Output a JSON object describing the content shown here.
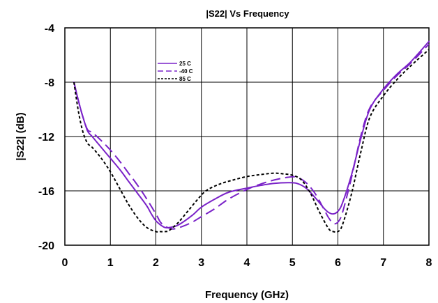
{
  "chart_data": {
    "type": "line",
    "title": "|S22| Vs Frequency",
    "xlabel": "Frequency (GHz)",
    "ylabel": "|S22|  (dB)",
    "xlim": [
      0,
      8
    ],
    "ylim": [
      -20,
      -4
    ],
    "xticks": [
      "0",
      "1",
      "2",
      "3",
      "4",
      "5",
      "6",
      "7",
      "8"
    ],
    "yticks": [
      "-4",
      "-8",
      "-12",
      "-16",
      "-20"
    ],
    "grid": true,
    "legend_position": "top-left inside plot",
    "series": [
      {
        "name": "25 C",
        "color": "#7a22c8",
        "style": "solid",
        "x": [
          0.2,
          0.3,
          0.4,
          0.5,
          0.6,
          0.8,
          1.0,
          1.2,
          1.4,
          1.6,
          1.8,
          1.9,
          2.0,
          2.1,
          2.2,
          2.3,
          2.5,
          2.8,
          3.0,
          3.3,
          3.6,
          4.0,
          4.3,
          4.6,
          4.9,
          5.1,
          5.3,
          5.5,
          5.7,
          5.8,
          5.9,
          6.0,
          6.1,
          6.3,
          6.5,
          6.7,
          7.0,
          7.3,
          7.6,
          8.0
        ],
        "y": [
          -8.0,
          -9.4,
          -10.6,
          -11.6,
          -12.0,
          -12.8,
          -13.6,
          -14.4,
          -15.3,
          -16.2,
          -17.1,
          -17.7,
          -18.2,
          -18.5,
          -18.7,
          -18.7,
          -18.5,
          -17.8,
          -17.2,
          -16.6,
          -16.1,
          -15.8,
          -15.6,
          -15.45,
          -15.4,
          -15.45,
          -15.8,
          -16.5,
          -17.3,
          -17.6,
          -17.7,
          -17.5,
          -16.9,
          -14.8,
          -12.2,
          -10.0,
          -8.5,
          -7.4,
          -6.5,
          -5.0
        ]
      },
      {
        "name": "-40 C",
        "color": "#7a22c8",
        "style": "dashed",
        "x": [
          0.2,
          0.3,
          0.4,
          0.5,
          0.6,
          0.8,
          1.0,
          1.2,
          1.4,
          1.6,
          1.8,
          2.0,
          2.1,
          2.2,
          2.3,
          2.4,
          2.6,
          2.8,
          3.0,
          3.3,
          3.6,
          4.0,
          4.3,
          4.6,
          4.9,
          5.1,
          5.3,
          5.5,
          5.7,
          5.8,
          5.9,
          6.0,
          6.1,
          6.3,
          6.5,
          6.7,
          7.0,
          7.3,
          7.6,
          8.0
        ],
        "y": [
          -8.0,
          -9.4,
          -10.6,
          -11.5,
          -11.7,
          -12.3,
          -13.0,
          -13.8,
          -14.7,
          -15.6,
          -16.6,
          -17.7,
          -18.3,
          -18.6,
          -18.75,
          -18.8,
          -18.6,
          -18.3,
          -17.9,
          -17.3,
          -16.6,
          -15.9,
          -15.5,
          -15.2,
          -15.0,
          -15.0,
          -15.4,
          -16.2,
          -17.4,
          -18.0,
          -18.4,
          -18.3,
          -17.6,
          -15.0,
          -12.0,
          -9.9,
          -8.6,
          -7.5,
          -6.6,
          -5.2
        ]
      },
      {
        "name": "85 C",
        "color": "#000000",
        "style": "dotted",
        "x": [
          0.2,
          0.3,
          0.4,
          0.5,
          0.6,
          0.8,
          1.0,
          1.2,
          1.4,
          1.6,
          1.8,
          2.0,
          2.1,
          2.2,
          2.3,
          2.5,
          2.7,
          2.9,
          3.1,
          3.4,
          3.7,
          4.0,
          4.3,
          4.6,
          4.8,
          5.0,
          5.2,
          5.4,
          5.6,
          5.8,
          5.9,
          6.0,
          6.1,
          6.3,
          6.5,
          6.7,
          7.0,
          7.3,
          7.6,
          8.0
        ],
        "y": [
          -8.0,
          -10.2,
          -11.7,
          -12.5,
          -12.8,
          -13.6,
          -14.6,
          -15.8,
          -17.0,
          -18.0,
          -18.7,
          -19.0,
          -19.0,
          -19.0,
          -18.9,
          -18.3,
          -17.5,
          -16.7,
          -16.0,
          -15.5,
          -15.2,
          -14.95,
          -14.8,
          -14.7,
          -14.75,
          -14.85,
          -15.2,
          -16.2,
          -17.6,
          -18.8,
          -19.0,
          -19.0,
          -18.5,
          -16.2,
          -13.2,
          -10.6,
          -9.0,
          -7.8,
          -6.8,
          -5.6
        ]
      }
    ]
  }
}
